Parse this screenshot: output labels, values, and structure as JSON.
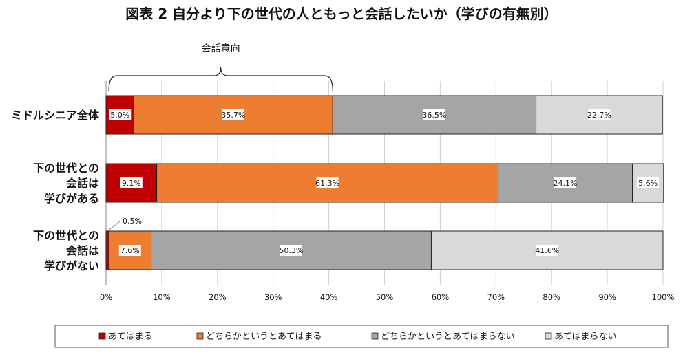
{
  "chart_data": {
    "type": "bar",
    "orientation": "horizontal-stacked-100",
    "title": "図表 2  自分より下の世代の人ともっと会話したいか（学びの有無別）",
    "categories": [
      [
        "ミドルシニア全体"
      ],
      [
        "下の世代との",
        "会話は",
        "学びがある"
      ],
      [
        "下の世代との",
        "会話は",
        "学びがない"
      ]
    ],
    "series": [
      {
        "name": "あてはまる",
        "color": "#c00000",
        "values": [
          5.0,
          9.1,
          0.5
        ],
        "labels": [
          "5.0%",
          "9.1%",
          "0.5%"
        ]
      },
      {
        "name": "どちらかというとあてはまる",
        "color": "#ed7d31",
        "values": [
          35.7,
          61.3,
          7.6
        ],
        "labels": [
          "35.7%",
          "61.3%",
          "7.6%"
        ]
      },
      {
        "name": "どちらかというとあてはまらない",
        "color": "#a5a5a5",
        "values": [
          36.5,
          24.1,
          50.3
        ],
        "labels": [
          "36.5%",
          "24.1%",
          "50.3%"
        ]
      },
      {
        "name": "あてはまらない",
        "color": "#d9d9d9",
        "values": [
          22.7,
          5.6,
          41.6
        ],
        "labels": [
          "22.7%",
          "5.6%",
          "41.6%"
        ]
      }
    ],
    "xlim": [
      0,
      100
    ],
    "xticks": [
      "0%",
      "10%",
      "20%",
      "30%",
      "40%",
      "50%",
      "60%",
      "70%",
      "80%",
      "90%",
      "100%"
    ],
    "grid": true,
    "legend": "bottom",
    "annotation": {
      "text": "会話意向",
      "spans_series": [
        "あてはまる",
        "どちらかというとあてはまる"
      ],
      "row": 0
    }
  }
}
